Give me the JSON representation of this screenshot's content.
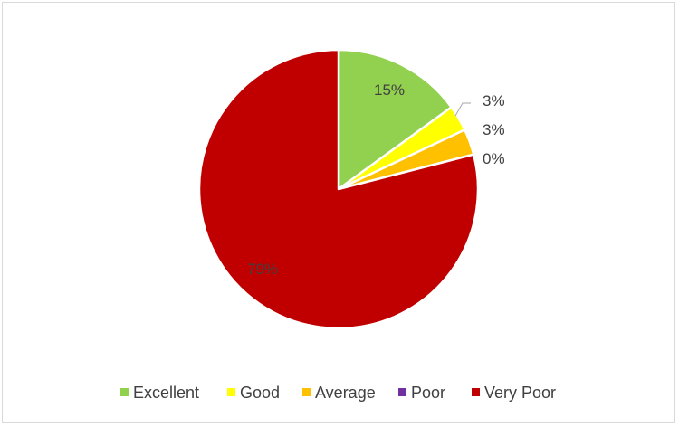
{
  "chart_data": {
    "type": "pie",
    "categories": [
      "Excellent",
      "Good",
      "Average",
      "Poor",
      "Very Poor"
    ],
    "values": [
      15,
      3,
      3,
      0,
      79
    ],
    "data_labels": [
      "15%",
      "3%",
      "3%",
      "0%",
      "79%"
    ],
    "colors": [
      "#92d050",
      "#ffff00",
      "#ffc000",
      "#7030a0",
      "#c00000"
    ],
    "title": "",
    "legend_position": "bottom",
    "start_angle_degrees": 0,
    "direction": "clockwise"
  }
}
